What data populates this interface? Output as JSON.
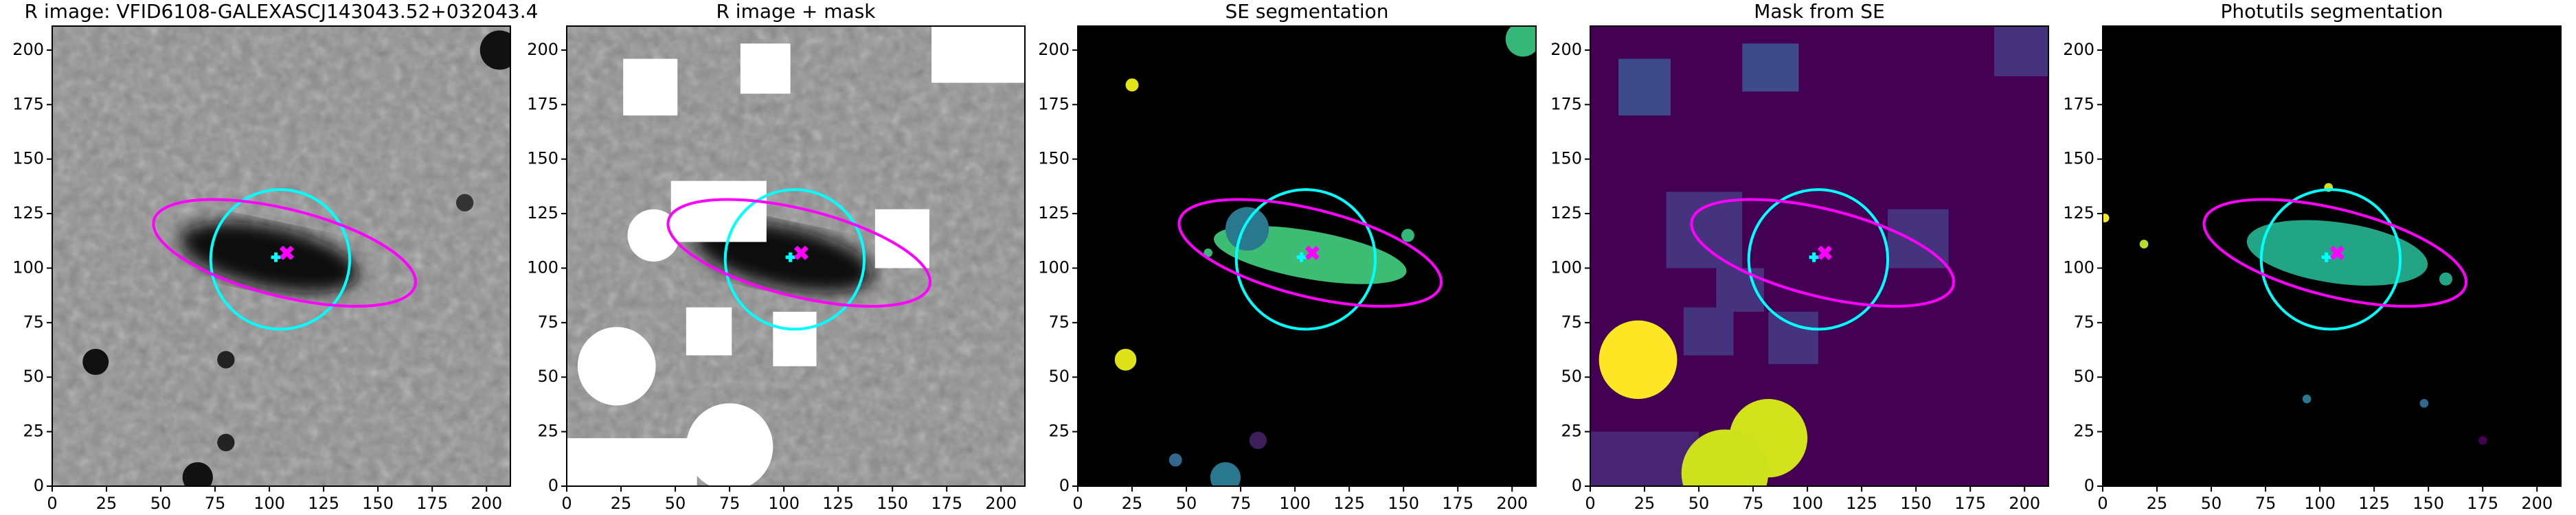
{
  "chart_data": [
    {
      "type": "image",
      "title": "R image: VFID6108-GALEXASCJ143043.52+032043.4",
      "xlim": [
        0,
        211
      ],
      "ylim": [
        0,
        211
      ],
      "xticks": [
        0,
        25,
        50,
        75,
        100,
        125,
        150,
        175,
        200
      ],
      "yticks": [
        0,
        25,
        50,
        75,
        100,
        125,
        150,
        175,
        200
      ]
    },
    {
      "type": "image",
      "title": "R image + mask",
      "xlim": [
        0,
        211
      ],
      "ylim": [
        0,
        211
      ],
      "xticks": [
        0,
        25,
        50,
        75,
        100,
        125,
        150,
        175,
        200
      ],
      "yticks": [
        0,
        25,
        50,
        75,
        100,
        125,
        150,
        175,
        200
      ]
    },
    {
      "type": "image",
      "title": "SE segmentation",
      "xlim": [
        0,
        211
      ],
      "ylim": [
        0,
        211
      ],
      "xticks": [
        0,
        25,
        50,
        75,
        100,
        125,
        150,
        175,
        200
      ],
      "yticks": [
        0,
        25,
        50,
        75,
        100,
        125,
        150,
        175,
        200
      ]
    },
    {
      "type": "image",
      "title": "Mask from SE",
      "xlim": [
        0,
        211
      ],
      "ylim": [
        0,
        211
      ],
      "xticks": [
        0,
        25,
        50,
        75,
        100,
        125,
        150,
        175,
        200
      ],
      "yticks": [
        0,
        25,
        50,
        75,
        100,
        125,
        150,
        175,
        200
      ]
    },
    {
      "type": "image",
      "title": "Photutils segmentation",
      "xlim": [
        0,
        211
      ],
      "ylim": [
        0,
        211
      ],
      "xticks": [
        0,
        25,
        50,
        75,
        100,
        125,
        150,
        175,
        200
      ],
      "yticks": [
        0,
        25,
        50,
        75,
        100,
        125,
        150,
        175,
        200
      ]
    }
  ]
}
